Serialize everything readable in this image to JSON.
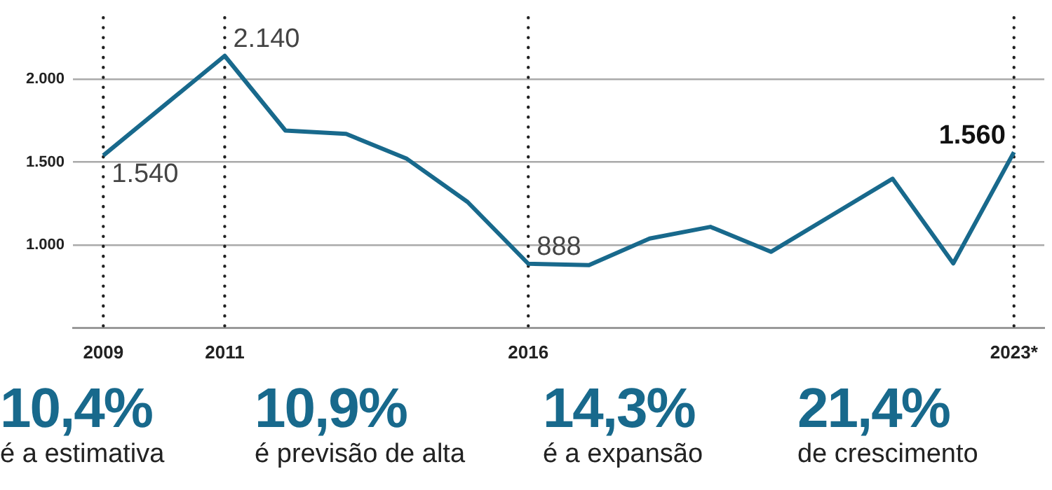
{
  "chart_data": {
    "type": "line",
    "categories": [
      "2009",
      null,
      "2011",
      null,
      null,
      null,
      null,
      "2016",
      null,
      null,
      null,
      null,
      null,
      null,
      null,
      "2023*"
    ],
    "series": [
      {
        "color": "#18698c",
        "values": [
          1540,
          1840,
          2140,
          1690,
          1670,
          1520,
          1260,
          888,
          880,
          1040,
          1110,
          960,
          1180,
          1400,
          890,
          1560
        ],
        "value_labels": [
          "1.540",
          null,
          "2.140",
          null,
          null,
          null,
          null,
          "888",
          null,
          null,
          null,
          null,
          null,
          null,
          null,
          "1.560"
        ]
      }
    ],
    "ylim": [
      500,
      2370
    ],
    "yticks": [
      {
        "value": 1000,
        "label": "1.000"
      },
      {
        "value": 1500,
        "label": "1.500"
      },
      {
        "value": 2000,
        "label": "2.000"
      }
    ],
    "grid": "y",
    "legend": false,
    "marker": "none",
    "line_style": "solid",
    "ref_lines": [
      {
        "axis": "x",
        "value": "2009",
        "line_style": "dotted"
      },
      {
        "axis": "x",
        "value": "2011",
        "line_style": "dotted"
      },
      {
        "axis": "x",
        "value": "2016",
        "line_style": "dotted"
      },
      {
        "axis": "x",
        "value": "2023*",
        "line_style": "dotted"
      }
    ],
    "annotations": [
      "10,4%",
      "é a estimativa",
      "10,9%",
      "é previsão de alta",
      "14,3%",
      "é a expansão",
      "21,4%",
      "de crescimento"
    ]
  }
}
